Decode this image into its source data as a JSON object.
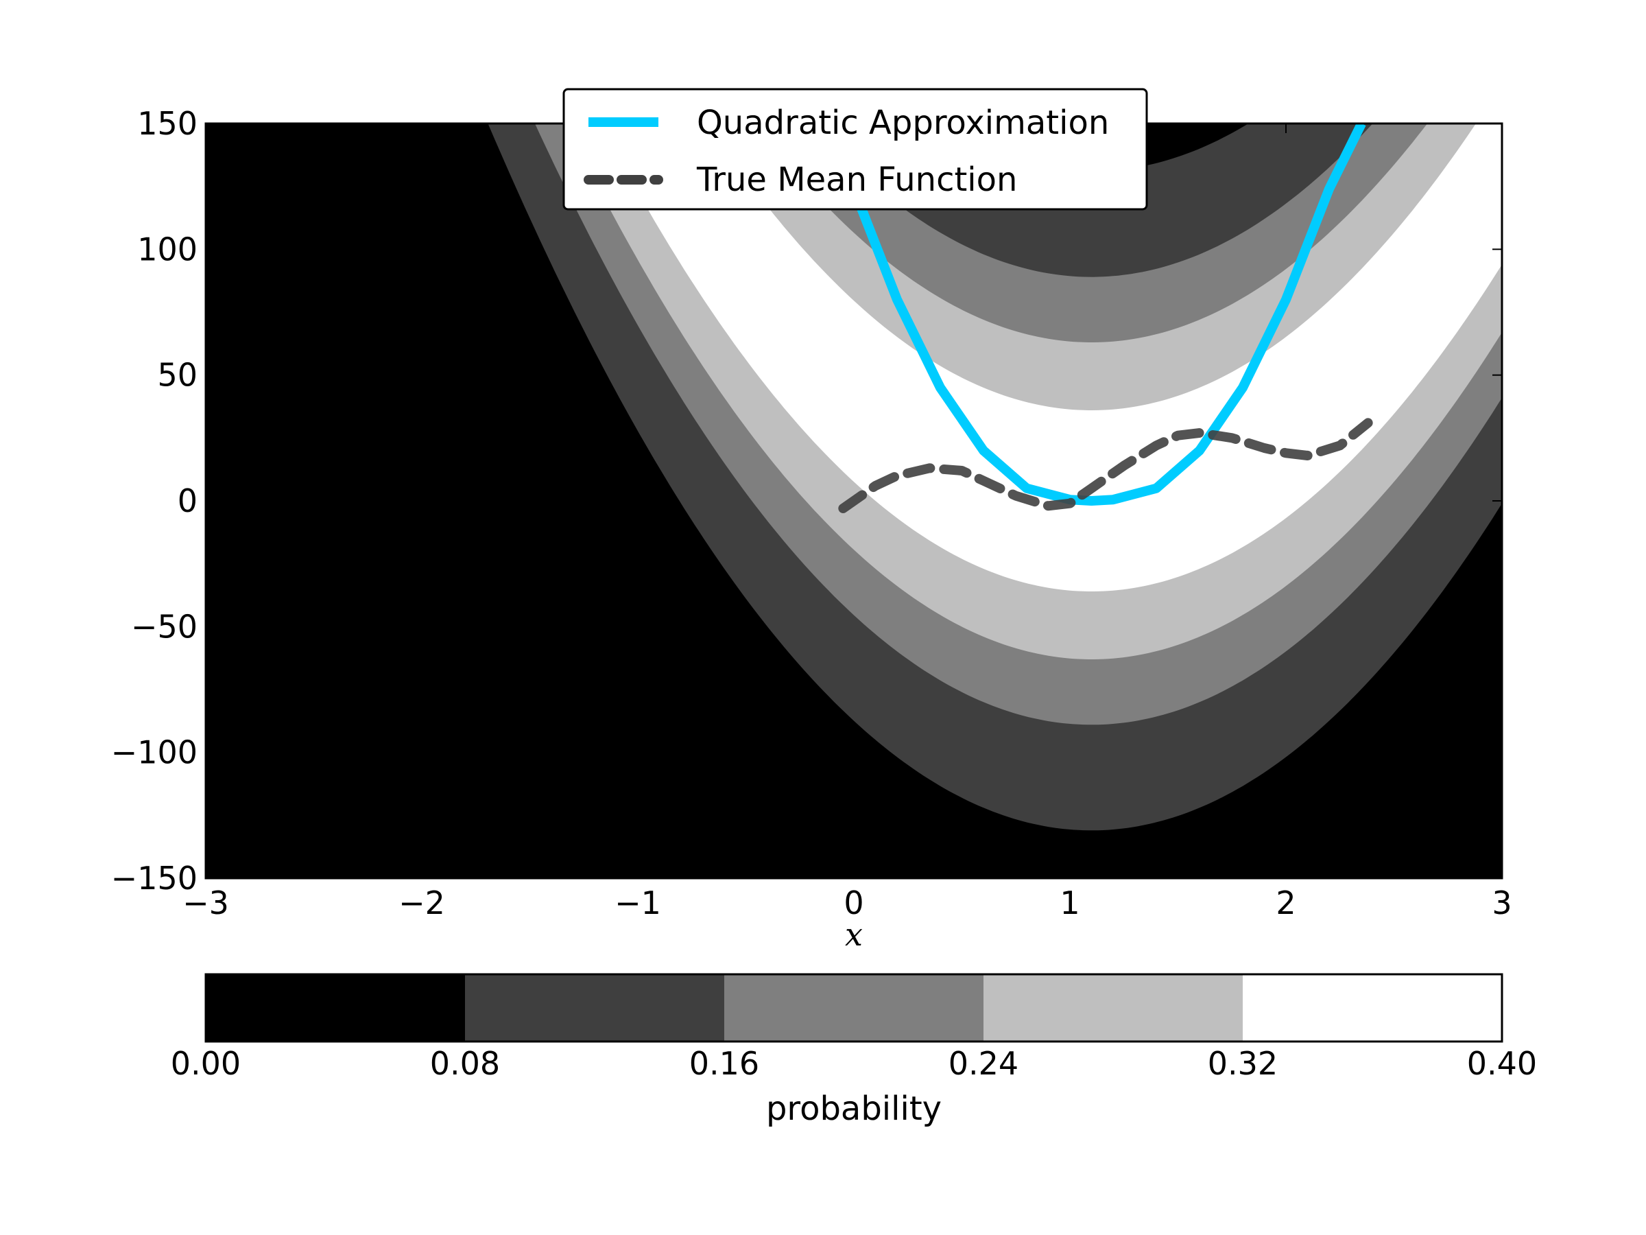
{
  "chart_data": {
    "type": "contour",
    "xlabel": "x",
    "ylabel": "",
    "xlim": [
      -3,
      3
    ],
    "ylim": [
      -150,
      150
    ],
    "x_ticks": [
      -3,
      -2,
      -1,
      0,
      1,
      2,
      3
    ],
    "x_tick_labels": [
      "−3",
      "−2",
      "−1",
      "0",
      "1",
      "2",
      "3"
    ],
    "y_ticks": [
      150,
      100,
      50,
      0,
      -50,
      -100,
      -150
    ],
    "y_tick_labels": [
      "150",
      "100",
      "50",
      "0",
      "−50",
      "−100",
      "−150"
    ],
    "series": [
      {
        "name": "Quadratic Approximation",
        "color": "#00ccff",
        "style": "solid",
        "x": [
          -0.08,
          0.0,
          0.2,
          0.4,
          0.6,
          0.8,
          1.0,
          1.1,
          1.2,
          1.4,
          1.6,
          1.8,
          2.0,
          2.2,
          2.35
        ],
        "y": [
          150,
          124,
          80,
          45,
          20,
          5,
          0.5,
          0,
          0.5,
          5,
          20,
          45,
          80,
          124,
          150
        ]
      },
      {
        "name": "True Mean Function",
        "color": "#404040",
        "style": "dashed",
        "x": [
          -0.05,
          0.1,
          0.2,
          0.35,
          0.5,
          0.6,
          0.75,
          0.9,
          1.0,
          1.1,
          1.25,
          1.4,
          1.5,
          1.6,
          1.75,
          1.9,
          2.0,
          2.1,
          2.25,
          2.38
        ],
        "y": [
          -3,
          6,
          10,
          13,
          12,
          8,
          2,
          -2,
          -1,
          5,
          14,
          22,
          26,
          27,
          25,
          21,
          19,
          18,
          22,
          31
        ]
      }
    ],
    "contour": {
      "center_x": 1.1,
      "quadratic_coefficient": 36,
      "band_edges": [
        0,
        36,
        63,
        89,
        131
      ],
      "fill_colors": [
        "#ffffff",
        "#bfbfbf",
        "#7f7f7f",
        "#3f3f3f",
        "#000000"
      ]
    },
    "colorbar": {
      "label": "probability",
      "orientation": "horizontal",
      "levels": [
        0.0,
        0.08,
        0.16,
        0.24,
        0.32,
        0.4
      ],
      "tick_labels": [
        "0.00",
        "0.08",
        "0.16",
        "0.24",
        "0.32",
        "0.40"
      ],
      "colors": [
        "#000000",
        "#3f3f3f",
        "#7f7f7f",
        "#bfbfbf",
        "#ffffff"
      ]
    },
    "legend": {
      "placement": "top-center",
      "entries": [
        "Quadratic Approximation",
        "True Mean Function"
      ]
    },
    "grid": false
  }
}
